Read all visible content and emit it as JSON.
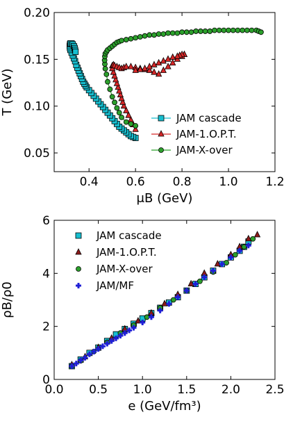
{
  "chart_data": [
    {
      "type": "line",
      "xlabel": "μB (GeV)",
      "ylabel": "T (GeV)",
      "xlim": [
        0.25,
        1.2
      ],
      "ylim": [
        0.03,
        0.2
      ],
      "xticks": [
        "0.4",
        "0.6",
        "0.8",
        "1.0",
        "1.2"
      ],
      "yticks": [
        "0.05",
        "0.10",
        "0.15",
        "0.20"
      ],
      "legend_position": "lower-right",
      "series": [
        {
          "name": "JAM cascade",
          "color": "#17becf",
          "marker": "square",
          "x": [
            0.6,
            0.59,
            0.58,
            0.57,
            0.56,
            0.55,
            0.54,
            0.53,
            0.52,
            0.51,
            0.5,
            0.49,
            0.48,
            0.47,
            0.46,
            0.45,
            0.44,
            0.43,
            0.42,
            0.41,
            0.4,
            0.39,
            0.385,
            0.38,
            0.375,
            0.37,
            0.365,
            0.36,
            0.355,
            0.35,
            0.345,
            0.34,
            0.335,
            0.33,
            0.325,
            0.32,
            0.318,
            0.317,
            0.318,
            0.32,
            0.325,
            0.33,
            0.335,
            0.338,
            0.34,
            0.342
          ],
          "y": [
            0.066,
            0.067,
            0.068,
            0.07,
            0.072,
            0.074,
            0.076,
            0.078,
            0.081,
            0.084,
            0.087,
            0.09,
            0.093,
            0.096,
            0.099,
            0.102,
            0.105,
            0.108,
            0.111,
            0.114,
            0.117,
            0.12,
            0.122,
            0.124,
            0.126,
            0.129,
            0.132,
            0.135,
            0.138,
            0.141,
            0.144,
            0.148,
            0.151,
            0.154,
            0.157,
            0.16,
            0.162,
            0.164,
            0.166,
            0.167,
            0.167,
            0.166,
            0.164,
            0.162,
            0.16,
            0.158
          ]
        },
        {
          "name": "JAM-1.O.P.T.",
          "color": "#d62728",
          "marker": "triangle",
          "x": [
            0.6,
            0.59,
            0.58,
            0.57,
            0.56,
            0.55,
            0.545,
            0.54,
            0.535,
            0.53,
            0.525,
            0.52,
            0.515,
            0.51,
            0.505,
            0.5,
            0.5,
            0.505,
            0.51,
            0.52,
            0.53,
            0.54,
            0.55,
            0.56,
            0.58,
            0.6,
            0.62,
            0.64,
            0.66,
            0.68,
            0.7,
            0.72,
            0.74,
            0.76,
            0.78,
            0.8,
            0.81,
            0.81,
            0.8,
            0.79,
            0.78,
            0.76,
            0.74,
            0.72,
            0.7,
            0.68,
            0.66,
            0.64,
            0.62,
            0.6
          ],
          "y": [
            0.075,
            0.08,
            0.085,
            0.09,
            0.095,
            0.1,
            0.104,
            0.108,
            0.112,
            0.116,
            0.12,
            0.124,
            0.128,
            0.132,
            0.136,
            0.14,
            0.143,
            0.144,
            0.143,
            0.142,
            0.141,
            0.14,
            0.141,
            0.142,
            0.142,
            0.141,
            0.14,
            0.139,
            0.138,
            0.136,
            0.134,
            0.138,
            0.142,
            0.146,
            0.15,
            0.153,
            0.155,
            0.155,
            0.155,
            0.154,
            0.153,
            0.152,
            0.15,
            0.148,
            0.146,
            0.144,
            0.142,
            0.14,
            0.139,
            0.138
          ]
        },
        {
          "name": "JAM-X-over",
          "color": "#2ca02c",
          "marker": "circle",
          "x": [
            0.6,
            0.58,
            0.56,
            0.54,
            0.53,
            0.52,
            0.51,
            0.5,
            0.49,
            0.48,
            0.475,
            0.47,
            0.468,
            0.467,
            0.468,
            0.47,
            0.475,
            0.48,
            0.49,
            0.5,
            0.51,
            0.52,
            0.53,
            0.54,
            0.56,
            0.58,
            0.6,
            0.62,
            0.64,
            0.66,
            0.68,
            0.7,
            0.72,
            0.74,
            0.76,
            0.78,
            0.8,
            0.82,
            0.84,
            0.86,
            0.88,
            0.9,
            0.92,
            0.94,
            0.96,
            0.98,
            1.0,
            1.02,
            1.04,
            1.06,
            1.08,
            1.1,
            1.12,
            1.13,
            1.14
          ],
          "y": [
            0.079,
            0.081,
            0.083,
            0.088,
            0.093,
            0.098,
            0.104,
            0.11,
            0.118,
            0.126,
            0.134,
            0.14,
            0.145,
            0.149,
            0.153,
            0.156,
            0.158,
            0.16,
            0.162,
            0.164,
            0.166,
            0.168,
            0.169,
            0.17,
            0.171,
            0.172,
            0.173,
            0.174,
            0.175,
            0.176,
            0.176,
            0.177,
            0.177,
            0.178,
            0.178,
            0.178,
            0.179,
            0.179,
            0.179,
            0.18,
            0.18,
            0.18,
            0.18,
            0.181,
            0.181,
            0.181,
            0.181,
            0.181,
            0.181,
            0.181,
            0.181,
            0.181,
            0.181,
            0.18,
            0.179
          ]
        }
      ]
    },
    {
      "type": "scatter",
      "xlabel": "e (GeV/fm³)",
      "ylabel": "ρB/ρ0",
      "xlim": [
        0.0,
        2.5
      ],
      "ylim": [
        0,
        6
      ],
      "xticks": [
        "0.0",
        "0.5",
        "1.0",
        "1.5",
        "2.0",
        "2.5"
      ],
      "yticks": [
        "0",
        "2",
        "4",
        "6"
      ],
      "legend_position": "top-left",
      "series": [
        {
          "name": "JAM cascade",
          "color": "#17becf",
          "marker": "square",
          "x": [
            0.2,
            0.3,
            0.4,
            0.5,
            0.6,
            0.7,
            0.8,
            0.9,
            1.0,
            1.1,
            1.2,
            1.3,
            1.4,
            1.5,
            1.6,
            1.7,
            1.8,
            1.9,
            2.0,
            2.1,
            2.15,
            2.2
          ],
          "y": [
            0.5,
            0.75,
            1.0,
            1.2,
            1.45,
            1.7,
            1.9,
            2.1,
            2.3,
            2.5,
            2.7,
            2.9,
            3.1,
            3.35,
            3.6,
            3.85,
            4.1,
            4.35,
            4.6,
            4.85,
            5.0,
            5.2
          ]
        },
        {
          "name": "JAM-1.O.P.T.",
          "color": "#8b1a1a",
          "marker": "triangle",
          "x": [
            0.2,
            0.35,
            0.5,
            0.65,
            0.8,
            0.95,
            1.1,
            1.25,
            1.4,
            1.55,
            1.7,
            1.85,
            2.0,
            2.1,
            2.2,
            2.3
          ],
          "y": [
            0.55,
            0.85,
            1.2,
            1.55,
            1.9,
            2.2,
            2.5,
            2.85,
            3.2,
            3.6,
            4.0,
            4.35,
            4.7,
            5.0,
            5.3,
            5.45
          ]
        },
        {
          "name": "JAM-X-over",
          "color": "#2ca02c",
          "marker": "circle",
          "x": [
            0.2,
            0.3,
            0.45,
            0.6,
            0.75,
            0.9,
            1.05,
            1.2,
            1.35,
            1.5,
            1.65,
            1.8,
            1.95,
            2.05,
            2.15,
            2.25
          ],
          "y": [
            0.5,
            0.7,
            1.05,
            1.4,
            1.75,
            2.05,
            2.35,
            2.7,
            3.0,
            3.35,
            3.7,
            4.05,
            4.4,
            4.7,
            5.0,
            5.3
          ]
        },
        {
          "name": "JAM/MF",
          "color": "#1f1fd6",
          "marker": "plus",
          "x": [
            0.2,
            0.25,
            0.3,
            0.35,
            0.4,
            0.45,
            0.5,
            0.55,
            0.6,
            0.65,
            0.7,
            0.75,
            0.8,
            0.85,
            0.9,
            1.0,
            1.1,
            1.2,
            1.3,
            1.4,
            1.5,
            1.6,
            1.7,
            1.8,
            1.9,
            2.0,
            2.1,
            2.2
          ],
          "y": [
            0.5,
            0.6,
            0.72,
            0.82,
            0.95,
            1.05,
            1.15,
            1.25,
            1.35,
            1.45,
            1.55,
            1.65,
            1.75,
            1.85,
            1.95,
            2.15,
            2.35,
            2.6,
            2.85,
            3.1,
            3.35,
            3.6,
            3.85,
            4.1,
            4.35,
            4.6,
            4.85,
            5.05
          ]
        }
      ]
    }
  ]
}
